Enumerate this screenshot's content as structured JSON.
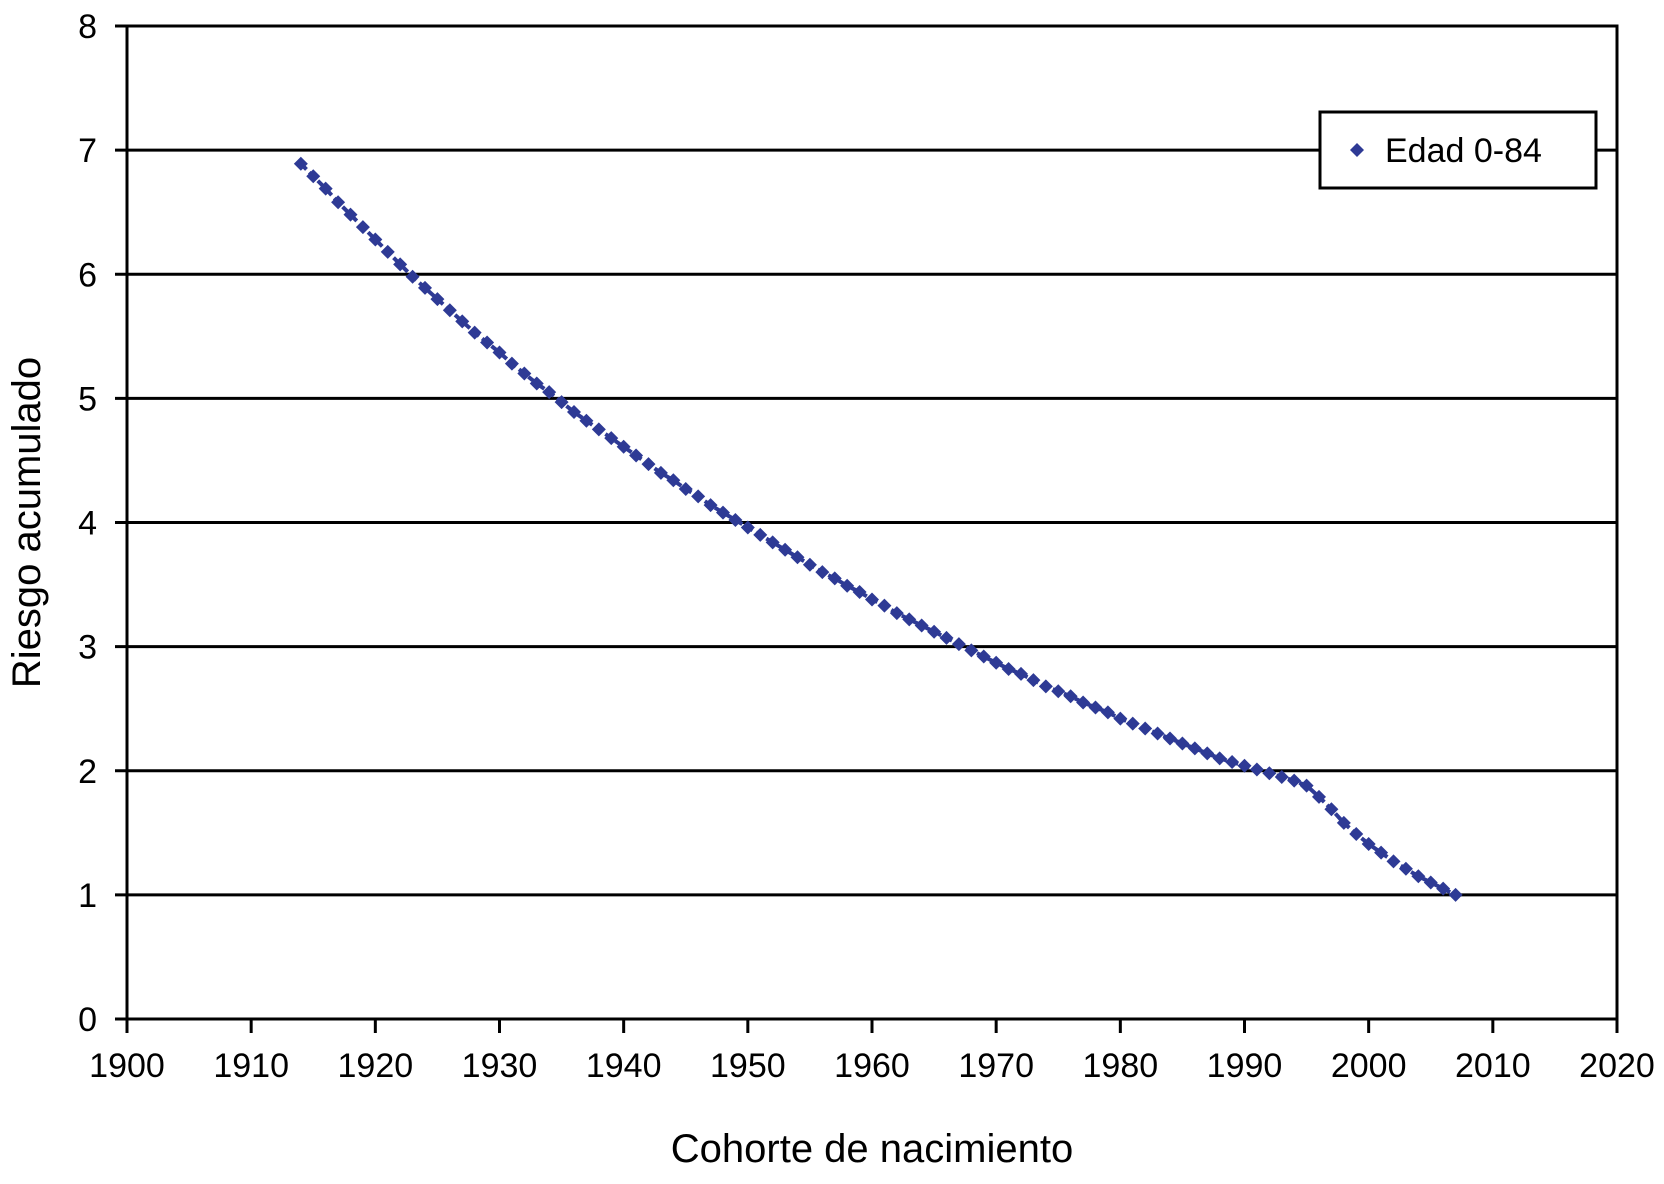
{
  "chart_data": {
    "type": "scatter",
    "title": "",
    "xlabel": "Cohorte de nacimiento",
    "ylabel": "Riesgo acumulado",
    "xlim": [
      1900,
      2020
    ],
    "ylim": [
      0,
      8
    ],
    "x_ticks": [
      "1900",
      "1910",
      "1920",
      "1930",
      "1940",
      "1950",
      "1960",
      "1970",
      "1980",
      "1990",
      "2000",
      "2010",
      "2020"
    ],
    "y_ticks": [
      "0",
      "1",
      "2",
      "3",
      "4",
      "5",
      "6",
      "7",
      "8"
    ],
    "grid": "horizontal",
    "legend_position": "top-right",
    "color": "#2e3a95",
    "series": [
      {
        "name": "Edad 0-84",
        "marker": "diamond",
        "x": [
          1914,
          1915,
          1916,
          1917,
          1918,
          1919,
          1920,
          1921,
          1922,
          1923,
          1924,
          1925,
          1926,
          1927,
          1928,
          1929,
          1930,
          1931,
          1932,
          1933,
          1934,
          1935,
          1936,
          1937,
          1938,
          1939,
          1940,
          1941,
          1942,
          1943,
          1944,
          1945,
          1946,
          1947,
          1948,
          1949,
          1950,
          1951,
          1952,
          1953,
          1954,
          1955,
          1956,
          1957,
          1958,
          1959,
          1960,
          1961,
          1962,
          1963,
          1964,
          1965,
          1966,
          1967,
          1968,
          1969,
          1970,
          1971,
          1972,
          1973,
          1974,
          1975,
          1976,
          1977,
          1978,
          1979,
          1980,
          1981,
          1982,
          1983,
          1984,
          1985,
          1986,
          1987,
          1988,
          1989,
          1990,
          1991,
          1992,
          1993,
          1994,
          1995,
          1996,
          1997,
          1998,
          1999,
          2000,
          2001,
          2002,
          2003,
          2004,
          2005,
          2006,
          2007
        ],
        "y": [
          6.89,
          6.79,
          6.69,
          6.58,
          6.48,
          6.38,
          6.28,
          6.18,
          6.08,
          5.98,
          5.89,
          5.8,
          5.71,
          5.62,
          5.53,
          5.45,
          5.37,
          5.28,
          5.2,
          5.12,
          5.05,
          4.97,
          4.89,
          4.82,
          4.75,
          4.68,
          4.61,
          4.54,
          4.47,
          4.4,
          4.34,
          4.27,
          4.21,
          4.14,
          4.08,
          4.02,
          3.96,
          3.9,
          3.84,
          3.78,
          3.72,
          3.66,
          3.6,
          3.55,
          3.49,
          3.44,
          3.38,
          3.33,
          3.27,
          3.22,
          3.17,
          3.12,
          3.07,
          3.02,
          2.97,
          2.92,
          2.87,
          2.82,
          2.78,
          2.73,
          2.68,
          2.64,
          2.6,
          2.55,
          2.51,
          2.47,
          2.42,
          2.38,
          2.34,
          2.3,
          2.26,
          2.22,
          2.18,
          2.14,
          2.1,
          2.07,
          2.04,
          2.01,
          1.98,
          1.95,
          1.92,
          1.88,
          1.79,
          1.69,
          1.58,
          1.49,
          1.41,
          1.34,
          1.27,
          1.21,
          1.15,
          1.1,
          1.05,
          1.0
        ]
      }
    ]
  }
}
